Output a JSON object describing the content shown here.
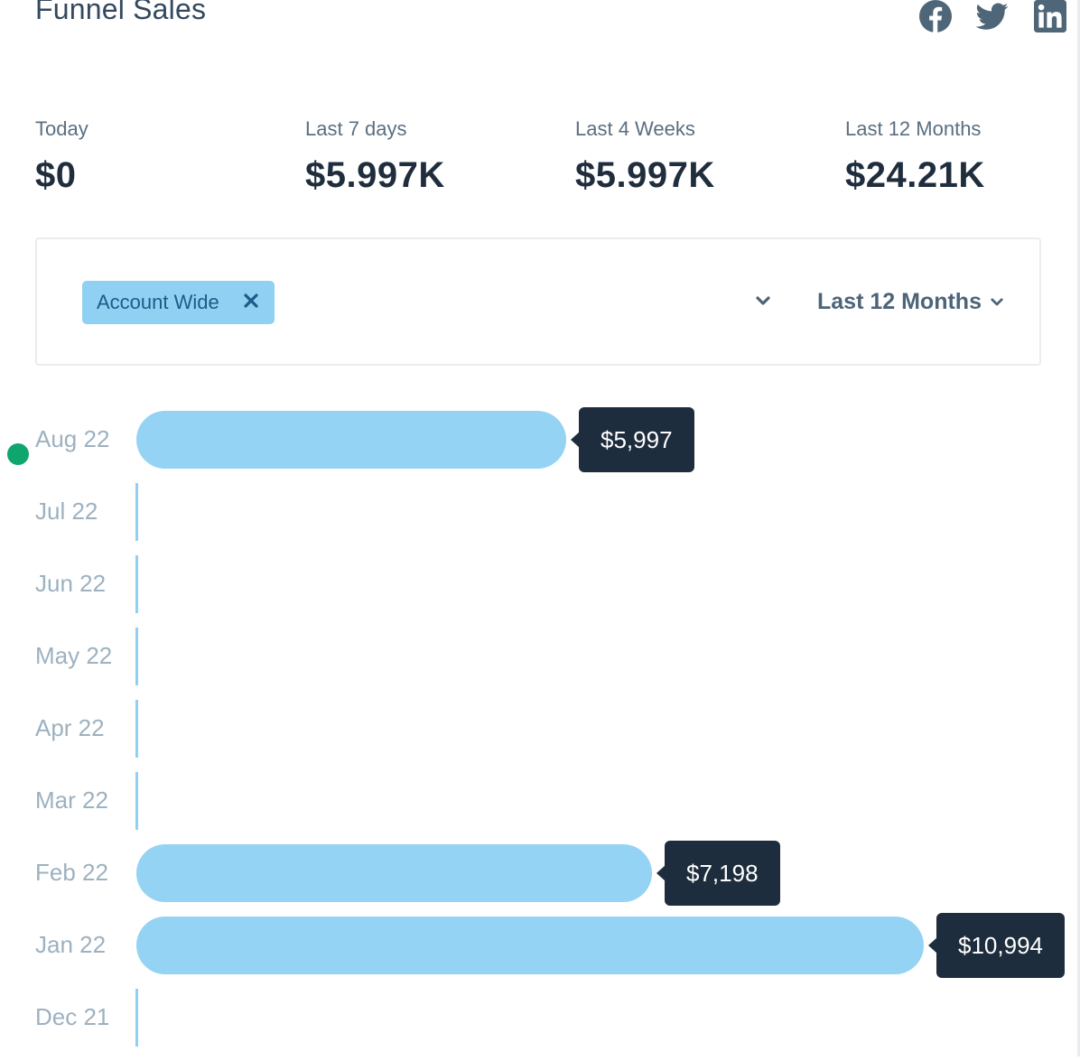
{
  "page": {
    "title": "Funnel Sales"
  },
  "social": [
    {
      "name": "facebook-icon"
    },
    {
      "name": "twitter-icon"
    },
    {
      "name": "linkedin-icon"
    }
  ],
  "stats": [
    {
      "label": "Today",
      "value": "$0"
    },
    {
      "label": "Last 7 days",
      "value": "$5.997K"
    },
    {
      "label": "Last 4 Weeks",
      "value": "$5.997K"
    },
    {
      "label": "Last 12 Months",
      "value": "$24.21K"
    }
  ],
  "filters": {
    "chip_label": "Account Wide",
    "period_label": "Last 12 Months"
  },
  "colors": {
    "bar": "#94d3f4",
    "tag": "#1e2d3d",
    "status_dot": "#0fa66e"
  },
  "chart_data": {
    "type": "bar",
    "orientation": "horizontal",
    "title": "",
    "categories": [
      "Aug 22",
      "Jul 22",
      "Jun 22",
      "May 22",
      "Apr 22",
      "Mar 22",
      "Feb 22",
      "Jan 22",
      "Dec 21"
    ],
    "values": [
      5997,
      0,
      0,
      0,
      0,
      0,
      7198,
      10994,
      0
    ],
    "value_labels": [
      "$5,997",
      "",
      "",
      "",
      "",
      "",
      "$7,198",
      "$10,994",
      ""
    ],
    "xlim": [
      0,
      10994
    ]
  }
}
